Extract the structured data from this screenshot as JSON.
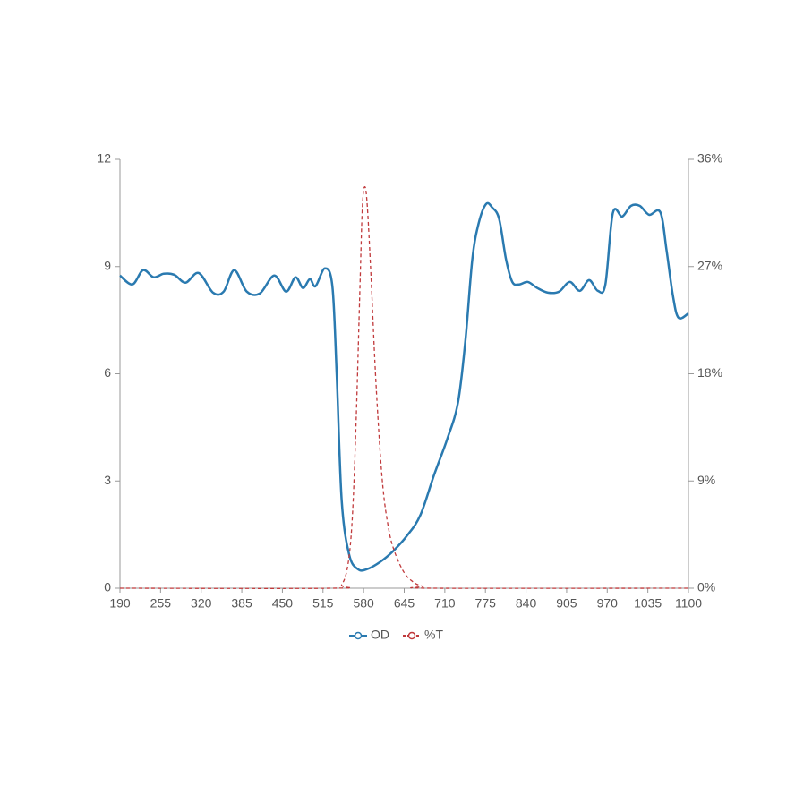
{
  "chart_data": {
    "type": "line",
    "xlim": [
      190,
      1100
    ],
    "xticks": [
      190,
      255,
      320,
      385,
      450,
      515,
      580,
      645,
      710,
      775,
      840,
      905,
      970,
      1035,
      1100
    ],
    "ylim": [
      0,
      12
    ],
    "yticks": [
      0,
      3,
      6,
      9,
      12
    ],
    "y2lim": [
      0,
      36
    ],
    "y2ticks": [
      {
        "value": 0,
        "label": "0%"
      },
      {
        "value": 9,
        "label": "9%"
      },
      {
        "value": 18,
        "label": "18%"
      },
      {
        "value": 27,
        "label": "27%"
      },
      {
        "value": 36,
        "label": "36%"
      }
    ],
    "legend": "bottom",
    "series": [
      {
        "name": "OD",
        "color": "#2a7ab0",
        "dashed": false,
        "x": [
          190,
          210,
          227,
          244,
          260,
          277,
          295,
          316,
          339,
          356,
          373,
          393,
          414,
          437,
          456,
          471,
          483,
          494,
          503,
          518,
          530,
          537,
          545,
          557,
          571,
          585,
          606,
          628,
          650,
          671,
          693,
          714,
          731,
          743,
          754,
          764,
          776,
          786,
          797,
          808,
          818,
          829,
          843,
          858,
          875,
          893,
          910,
          926,
          941,
          955,
          967,
          979,
          994,
          1008,
          1022,
          1037,
          1055,
          1065,
          1075,
          1084,
          1100
        ],
        "values": [
          8.75,
          8.5,
          8.9,
          8.7,
          8.8,
          8.77,
          8.55,
          8.82,
          8.27,
          8.3,
          8.9,
          8.3,
          8.25,
          8.75,
          8.3,
          8.7,
          8.4,
          8.65,
          8.45,
          8.95,
          8.45,
          5.95,
          2.43,
          0.93,
          0.53,
          0.53,
          0.73,
          1.05,
          1.48,
          2.05,
          3.18,
          4.18,
          5.19,
          6.94,
          9.2,
          10.2,
          10.75,
          10.65,
          10.33,
          9.2,
          8.57,
          8.5,
          8.57,
          8.4,
          8.27,
          8.3,
          8.57,
          8.32,
          8.62,
          8.32,
          8.5,
          10.5,
          10.4,
          10.7,
          10.7,
          10.45,
          10.52,
          9.45,
          8.2,
          7.57,
          7.69
        ]
      },
      {
        "name": "%T",
        "color": "#c0393b",
        "dashed": true,
        "axis": "y2",
        "x": [
          190,
          530,
          545,
          555,
          562,
          568,
          574,
          578,
          582,
          586,
          592,
          600,
          610,
          620,
          630,
          645,
          660,
          675,
          690,
          1100
        ],
        "values": [
          0,
          0,
          0.3,
          2,
          6,
          14,
          25,
          32,
          33.7,
          32,
          26,
          17,
          9,
          5,
          3,
          1.3,
          0.5,
          0.15,
          0,
          0
        ]
      }
    ]
  }
}
